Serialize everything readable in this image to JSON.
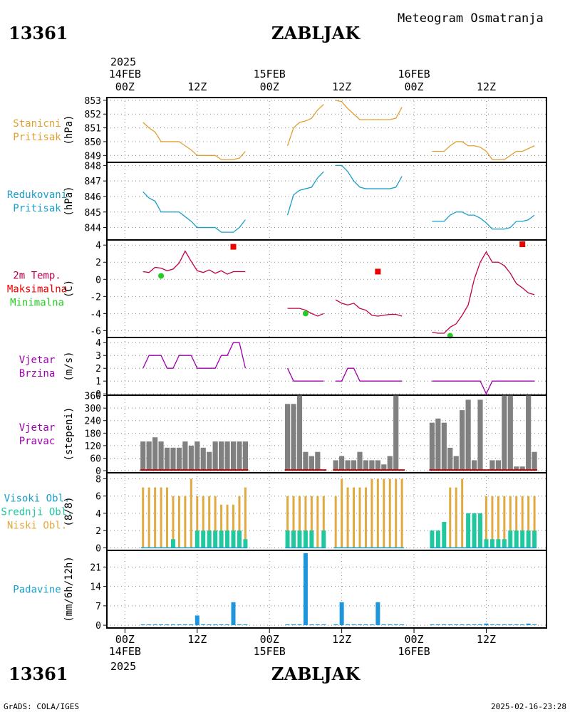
{
  "header": {
    "station_id": "13361",
    "station_name": "ZABLJAK",
    "chart_title": "Meteogram Osmatranja",
    "year": "2025"
  },
  "footer": {
    "credit": "GrADS: COLA/IGES",
    "timestamp": "2025-02-16-23:28"
  },
  "time_axis": {
    "hours_per_day": 24,
    "tick_labels": [
      {
        "hour": 0,
        "label": "00Z",
        "date": "14FEB"
      },
      {
        "hour": 12,
        "label": "12Z",
        "date": ""
      },
      {
        "hour": 24,
        "label": "00Z",
        "date": "15FEB"
      },
      {
        "hour": 36,
        "label": "12Z",
        "date": ""
      },
      {
        "hour": 48,
        "label": "00Z",
        "date": "16FEB"
      },
      {
        "hour": 60,
        "label": "12Z",
        "date": ""
      }
    ],
    "xlim": [
      -3,
      70
    ]
  },
  "colors": {
    "pressure_station": "#e0a030",
    "pressure_reduced": "#1aa0c8",
    "temperature": "#c0004a",
    "tmax_marker": "#ee0000",
    "tmin_marker": "#22cc22",
    "wind_speed": "#a000b0",
    "wind_dir_bar": "#808080",
    "wind_dir_baseline": "#c00000",
    "cloud_low": "#e0aa40",
    "cloud_mid": "#20c8a0",
    "cloud_high": "#1aa0c8",
    "precip": "#1e96dc"
  },
  "chart_data": [
    {
      "type": "line",
      "panel": "station_pressure",
      "labels": [
        {
          "text": "Stanicni",
          "color": "#e0a030"
        },
        {
          "text": "Pritisak",
          "color": "#e0a030"
        }
      ],
      "unit": "(hPa)",
      "ylim": [
        848.5,
        853.2
      ],
      "yticks": [
        849,
        850,
        851,
        852,
        853
      ],
      "series": [
        {
          "x": [
            3,
            4,
            5,
            6,
            7,
            8,
            9,
            10,
            11,
            12,
            13,
            14,
            15,
            16,
            17,
            18,
            19,
            20
          ],
          "y": [
            851.4,
            851.0,
            850.7,
            850.0,
            850.0,
            850.0,
            850.0,
            849.7,
            849.4,
            849.0,
            849.0,
            849.0,
            849.0,
            848.7,
            848.7,
            848.7,
            848.8,
            849.3
          ]
        },
        {
          "x": [
            27,
            28,
            29,
            30,
            31,
            32,
            33
          ],
          "y": [
            849.7,
            851.0,
            851.4,
            851.5,
            851.7,
            852.3,
            852.7
          ]
        },
        {
          "x": [
            35,
            36,
            37,
            38,
            39,
            40,
            41,
            42,
            43,
            44,
            45,
            46
          ],
          "y": [
            853.0,
            852.9,
            852.4,
            852.0,
            851.6,
            851.6,
            851.6,
            851.6,
            851.6,
            851.6,
            851.7,
            852.5
          ]
        },
        {
          "x": [
            51,
            52,
            53,
            54,
            55,
            56,
            57,
            58,
            59,
            60,
            61,
            62,
            63,
            64,
            65,
            66,
            67,
            68
          ],
          "y": [
            849.3,
            849.3,
            849.3,
            849.7,
            850.0,
            850.0,
            849.7,
            849.7,
            849.6,
            849.3,
            848.7,
            848.7,
            848.7,
            849.0,
            849.3,
            849.3,
            849.5,
            849.7
          ]
        }
      ]
    },
    {
      "type": "line",
      "panel": "reduced_pressure",
      "labels": [
        {
          "text": "Redukovani",
          "color": "#1aa0c8"
        },
        {
          "text": "Pritisak",
          "color": "#1aa0c8"
        }
      ],
      "unit": "(hPa)",
      "ylim": [
        843.2,
        848.2
      ],
      "yticks": [
        844,
        845,
        846,
        847,
        848
      ],
      "series": [
        {
          "x": [
            3,
            4,
            5,
            6,
            7,
            8,
            9,
            10,
            11,
            12,
            13,
            14,
            15,
            16,
            17,
            18,
            19,
            20
          ],
          "y": [
            846.3,
            845.9,
            845.7,
            845.0,
            845.0,
            845.0,
            845.0,
            844.7,
            844.4,
            844.0,
            844.0,
            844.0,
            844.0,
            843.7,
            843.7,
            843.7,
            844.0,
            844.5
          ]
        },
        {
          "x": [
            27,
            28,
            29,
            30,
            31,
            32,
            33
          ],
          "y": [
            844.8,
            846.1,
            846.4,
            846.5,
            846.6,
            847.2,
            847.6
          ]
        },
        {
          "x": [
            35,
            36,
            37,
            38,
            39,
            40,
            41,
            42,
            43,
            44,
            45,
            46
          ],
          "y": [
            848.0,
            848.0,
            847.6,
            847.0,
            846.6,
            846.5,
            846.5,
            846.5,
            846.5,
            846.5,
            846.6,
            847.3
          ]
        },
        {
          "x": [
            51,
            52,
            53,
            54,
            55,
            56,
            57,
            58,
            59,
            60,
            61,
            62,
            63,
            64,
            65,
            66,
            67,
            68
          ],
          "y": [
            844.4,
            844.4,
            844.4,
            844.8,
            845.0,
            845.0,
            844.8,
            844.8,
            844.6,
            844.3,
            843.9,
            843.9,
            843.9,
            844.0,
            844.4,
            844.4,
            844.5,
            844.8
          ]
        }
      ]
    },
    {
      "type": "line",
      "panel": "temperature",
      "labels": [
        {
          "text": "2m Temp.",
          "color": "#c0004a"
        },
        {
          "text": "Maksimalna",
          "color": "#ee0000"
        },
        {
          "text": "Minimalna",
          "color": "#22cc22"
        }
      ],
      "unit": "(C)",
      "ylim": [
        -6.8,
        4.6
      ],
      "yticks": [
        -6,
        -4,
        -2,
        0,
        2,
        4
      ],
      "series": [
        {
          "x": [
            3,
            4,
            5,
            6,
            7,
            8,
            9,
            10,
            11,
            12,
            13,
            14,
            15,
            16,
            17,
            18,
            19,
            20
          ],
          "y": [
            0.9,
            0.8,
            1.4,
            1.3,
            1.0,
            1.2,
            1.9,
            3.3,
            2.1,
            1.0,
            0.8,
            1.1,
            0.7,
            1.0,
            0.6,
            0.9,
            0.9,
            0.9
          ]
        },
        {
          "x": [
            27,
            28,
            29,
            30,
            31,
            32,
            33
          ],
          "y": [
            -3.4,
            -3.4,
            -3.4,
            -3.6,
            -4.0,
            -4.3,
            -4.0
          ]
        },
        {
          "x": [
            35,
            36,
            37,
            38,
            39,
            40,
            41,
            42,
            43,
            44,
            45,
            46
          ],
          "y": [
            -2.4,
            -2.8,
            -3.0,
            -2.8,
            -3.4,
            -3.6,
            -4.2,
            -4.3,
            -4.2,
            -4.1,
            -4.1,
            -4.3
          ]
        },
        {
          "x": [
            51,
            52,
            53,
            54,
            55,
            56,
            57,
            58,
            59,
            60,
            61,
            62,
            63,
            64,
            65,
            66,
            67,
            68
          ],
          "y": [
            -6.2,
            -6.3,
            -6.3,
            -5.6,
            -5.2,
            -4.2,
            -3.0,
            0.0,
            2.0,
            3.2,
            2.0,
            2.0,
            1.6,
            0.7,
            -0.5,
            -1.0,
            -1.6,
            -1.8
          ]
        }
      ],
      "tmax": [
        {
          "x": 18,
          "y": 3.8
        },
        {
          "x": 42,
          "y": 0.9
        },
        {
          "x": 66,
          "y": 4.1
        }
      ],
      "tmin": [
        {
          "x": 6,
          "y": 0.4
        },
        {
          "x": 30,
          "y": -4.0
        },
        {
          "x": 54,
          "y": -6.6
        }
      ]
    },
    {
      "type": "line",
      "panel": "wind_speed",
      "labels": [
        {
          "text": "Vjetar",
          "color": "#a000b0"
        },
        {
          "text": "Brzina",
          "color": "#a000b0"
        }
      ],
      "unit": "(m/s)",
      "ylim": [
        -0.1,
        4.4
      ],
      "yticks": [
        0,
        1,
        2,
        3,
        4
      ],
      "series": [
        {
          "x": [
            3,
            4,
            5,
            6,
            7,
            8,
            9,
            10,
            11,
            12,
            13,
            14,
            15,
            16,
            17,
            18,
            19,
            20
          ],
          "y": [
            2,
            3,
            3,
            3,
            2,
            2,
            3,
            3,
            3,
            2,
            2,
            2,
            2,
            3,
            3,
            4,
            4,
            2
          ]
        },
        {
          "x": [
            27,
            28,
            29,
            30,
            31,
            32,
            33
          ],
          "y": [
            2,
            1,
            1,
            1,
            1,
            1,
            1
          ]
        },
        {
          "x": [
            35,
            36,
            37,
            38,
            39,
            40,
            41,
            42,
            43,
            44,
            45,
            46
          ],
          "y": [
            1,
            1,
            2,
            2,
            1,
            1,
            1,
            1,
            1,
            1,
            1,
            1
          ]
        },
        {
          "x": [
            51,
            52,
            53,
            54,
            55,
            56,
            57,
            58,
            59,
            60,
            61,
            62,
            63,
            64,
            65,
            66,
            67,
            68
          ],
          "y": [
            1,
            1,
            1,
            1,
            1,
            1,
            1,
            1,
            1,
            0,
            1,
            1,
            1,
            1,
            1,
            1,
            1,
            1
          ]
        }
      ]
    },
    {
      "type": "bar",
      "panel": "wind_direction",
      "labels": [
        {
          "text": "Vjetar",
          "color": "#a000b0"
        },
        {
          "text": "Pravac",
          "color": "#a000b0"
        }
      ],
      "unit": "(stepeni)",
      "ylim": [
        -10,
        362
      ],
      "yticks": [
        0,
        60,
        120,
        180,
        240,
        300,
        360
      ],
      "x": [
        3,
        4,
        5,
        6,
        7,
        8,
        9,
        10,
        11,
        12,
        13,
        14,
        15,
        16,
        17,
        18,
        19,
        20,
        27,
        28,
        29,
        30,
        31,
        32,
        33,
        35,
        36,
        37,
        38,
        39,
        40,
        41,
        42,
        43,
        44,
        45,
        46,
        51,
        52,
        53,
        54,
        55,
        56,
        57,
        58,
        59,
        60,
        61,
        62,
        63,
        64,
        65,
        66,
        67,
        68
      ],
      "values": [
        140,
        140,
        160,
        140,
        110,
        110,
        110,
        140,
        120,
        140,
        110,
        90,
        140,
        140,
        140,
        140,
        140,
        140,
        320,
        320,
        360,
        90,
        70,
        90,
        0,
        50,
        70,
        50,
        50,
        90,
        50,
        50,
        50,
        30,
        70,
        360,
        0,
        230,
        250,
        230,
        110,
        70,
        290,
        340,
        50,
        340,
        0,
        50,
        50,
        360,
        360,
        20,
        20,
        360,
        90
      ]
    },
    {
      "type": "bar",
      "panel": "clouds",
      "labels": [
        {
          "text": "Visoki Obl.",
          "color": "#1aa0c8"
        },
        {
          "text": "Srednji Obl.",
          "color": "#20c8a0"
        },
        {
          "text": "Niski Obl.",
          "color": "#e0aa40"
        }
      ],
      "unit": "(8/8)",
      "ylim": [
        -0.3,
        8.7
      ],
      "yticks": [
        0,
        2,
        4,
        6,
        8
      ],
      "x": [
        3,
        4,
        5,
        6,
        7,
        8,
        9,
        10,
        11,
        12,
        13,
        14,
        15,
        16,
        17,
        18,
        19,
        20,
        27,
        28,
        29,
        30,
        31,
        32,
        33,
        35,
        36,
        37,
        38,
        39,
        40,
        41,
        42,
        43,
        44,
        45,
        46,
        51,
        52,
        53,
        54,
        55,
        56,
        57,
        58,
        59,
        60,
        61,
        62,
        63,
        64,
        65,
        66,
        67,
        68
      ],
      "series": [
        {
          "name": "Niski Obl.",
          "values": [
            7,
            7,
            7,
            7,
            7,
            6,
            6,
            6,
            8,
            6,
            6,
            6,
            6,
            5,
            5,
            5,
            6,
            7,
            6,
            6,
            6,
            6,
            6,
            6,
            6,
            6,
            8,
            7,
            7,
            7,
            7,
            8,
            8,
            8,
            8,
            8,
            8,
            0,
            1,
            2,
            7,
            7,
            8,
            3,
            3,
            3,
            6,
            6,
            6,
            6,
            6,
            6,
            6,
            6,
            6
          ]
        },
        {
          "name": "Srednji Obl.",
          "values": [
            0,
            0,
            0,
            0,
            0,
            1,
            0,
            0,
            0,
            2,
            2,
            2,
            2,
            2,
            2,
            2,
            2,
            1,
            2,
            2,
            2,
            2,
            2,
            0,
            2,
            0,
            0,
            0,
            0,
            0,
            0,
            0,
            0,
            0,
            0,
            0,
            0,
            2,
            2,
            3,
            0,
            0,
            0,
            4,
            4,
            4,
            1,
            1,
            1,
            1,
            2,
            2,
            2,
            2,
            2
          ]
        },
        {
          "name": "Visoki Obl.",
          "values": [
            0,
            0,
            0,
            0,
            0,
            0,
            0,
            0,
            0,
            0,
            0,
            0,
            0,
            0,
            0,
            0,
            0,
            0,
            0,
            0,
            0,
            0,
            0,
            0,
            0,
            0,
            0,
            0,
            0,
            0,
            0,
            0,
            0,
            0,
            0,
            0,
            0,
            0,
            0,
            0,
            0,
            0,
            0,
            0,
            0,
            0,
            0,
            0,
            0,
            0,
            0,
            0,
            0,
            0,
            0
          ]
        }
      ]
    },
    {
      "type": "bar",
      "panel": "precipitation",
      "labels": [
        {
          "text": "Padavine",
          "color": "#1aa0c8"
        }
      ],
      "unit": "(mm/6h/12h)",
      "ylim": [
        -1,
        27
      ],
      "yticks": [
        0,
        7,
        14,
        21
      ],
      "x": [
        3,
        4,
        5,
        6,
        7,
        8,
        9,
        10,
        11,
        12,
        13,
        14,
        15,
        16,
        17,
        18,
        19,
        20,
        27,
        28,
        29,
        30,
        31,
        32,
        33,
        35,
        36,
        37,
        38,
        39,
        40,
        41,
        42,
        43,
        44,
        45,
        46,
        51,
        52,
        53,
        54,
        55,
        56,
        57,
        58,
        59,
        60,
        61,
        62,
        63,
        64,
        65,
        66,
        67,
        68
      ],
      "values": [
        0.3,
        0.3,
        0.3,
        0.3,
        0.3,
        0.3,
        0.3,
        0.3,
        0.3,
        3.5,
        0.3,
        0.3,
        0.3,
        0.3,
        0.3,
        8.3,
        0.3,
        0.3,
        0.3,
        0.3,
        0.3,
        26.0,
        0.3,
        0.3,
        0.3,
        0.3,
        8.3,
        0.3,
        0.3,
        0.3,
        0.3,
        0.3,
        8.3,
        0.3,
        0.3,
        0.3,
        0.3,
        0.3,
        0.3,
        0.3,
        0.3,
        0.3,
        0.3,
        0.3,
        0.3,
        0.3,
        0.6,
        0.3,
        0.3,
        0.3,
        0.3,
        0.3,
        0.3,
        0.6,
        0.3
      ]
    }
  ]
}
